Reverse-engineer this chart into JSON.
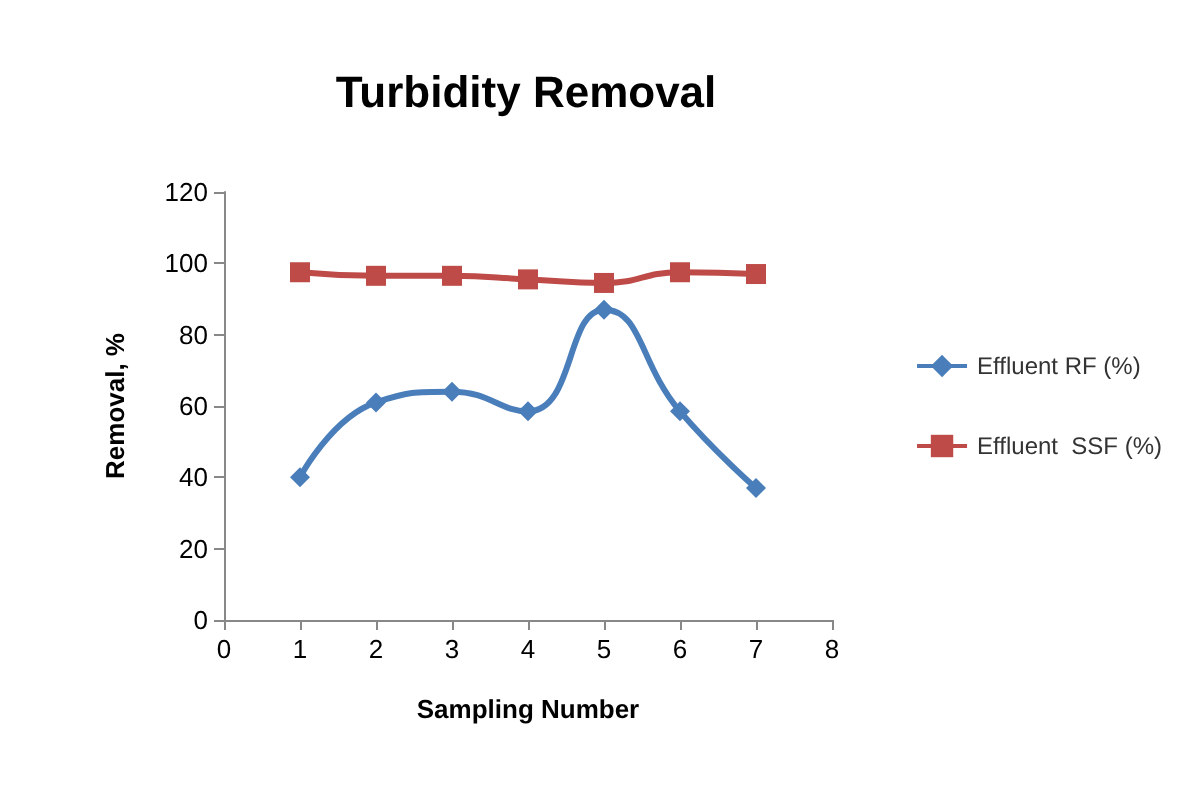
{
  "chart_data": {
    "type": "line",
    "title": "Turbidity Removal",
    "xlabel": "Sampling Number",
    "ylabel": "Removal, %",
    "x": [
      1,
      2,
      3,
      4,
      5,
      6,
      7
    ],
    "series": [
      {
        "name": "Effluent RF (%)",
        "color": "#4a7ebb",
        "marker": "diamond",
        "values": [
          40,
          61,
          64,
          58.5,
          87,
          58.5,
          37
        ]
      },
      {
        "name": "Effluent  SSF (%)",
        "color": "#be4b48",
        "marker": "square",
        "values": [
          97.5,
          96.5,
          96.5,
          95.5,
          94.5,
          97.5,
          97
        ]
      }
    ],
    "xlim": [
      0,
      8
    ],
    "xticks": [
      0,
      1,
      2,
      3,
      4,
      5,
      6,
      7,
      8
    ],
    "ylim": [
      0,
      120
    ],
    "yticks": [
      0,
      20,
      40,
      60,
      80,
      100,
      120
    ],
    "grid": false,
    "legend": "right",
    "line_style": "solid"
  }
}
